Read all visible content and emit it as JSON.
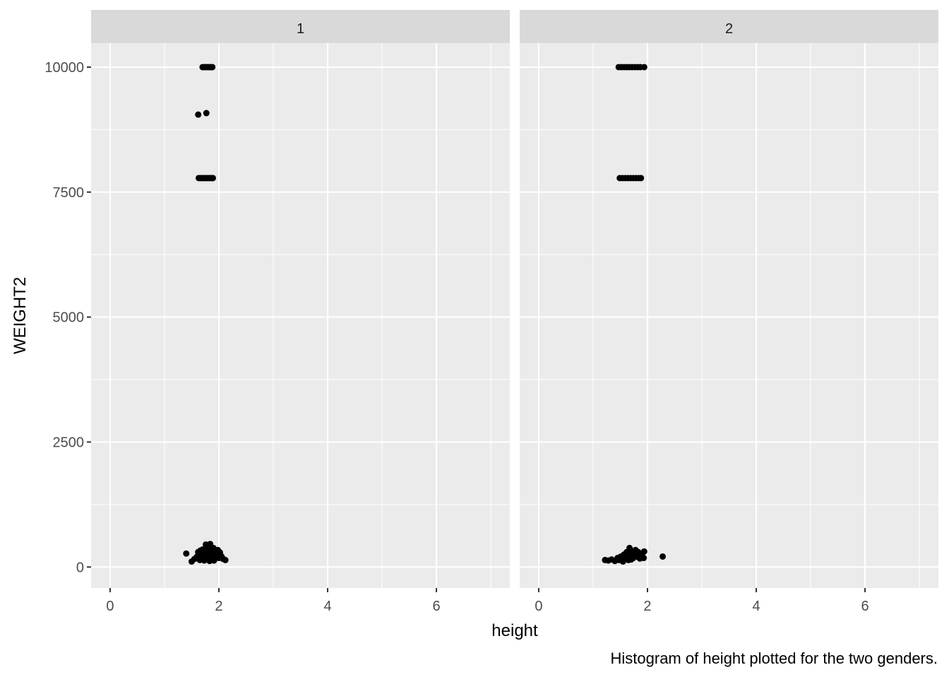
{
  "chart_data": {
    "type": "scatter",
    "xlabel": "height",
    "ylabel": "WEIGHT2",
    "caption": "Histogram of height plotted for the two genders.",
    "xlim": [
      -0.35,
      7.35
    ],
    "ylim": [
      -420,
      10480
    ],
    "x_ticks": [
      0,
      2,
      4,
      6
    ],
    "x_tick_labels": [
      "0",
      "2",
      "4",
      "6"
    ],
    "y_ticks": [
      0,
      2500,
      5000,
      7500,
      10000
    ],
    "y_tick_labels": [
      "0",
      "2500",
      "5000",
      "7500",
      "10000"
    ],
    "grid": true,
    "colors": {
      "panel_bg": "#EBEBEB",
      "strip_bg": "#D9D9D9",
      "grid": "#FFFFFF",
      "point": "#000000",
      "text": "#4D4D4D"
    },
    "facets": [
      {
        "label": "1",
        "points": [
          [
            1.7,
            10000
          ],
          [
            1.73,
            10000
          ],
          [
            1.76,
            10000
          ],
          [
            1.79,
            10000
          ],
          [
            1.82,
            10000
          ],
          [
            1.85,
            10000
          ],
          [
            1.88,
            10000
          ],
          [
            1.62,
            9050
          ],
          [
            1.77,
            9080
          ],
          [
            1.63,
            7780
          ],
          [
            1.66,
            7780
          ],
          [
            1.69,
            7780
          ],
          [
            1.72,
            7780
          ],
          [
            1.75,
            7780
          ],
          [
            1.78,
            7780
          ],
          [
            1.81,
            7780
          ],
          [
            1.84,
            7780
          ],
          [
            1.87,
            7780
          ],
          [
            1.89,
            7780
          ],
          [
            1.4,
            270
          ],
          [
            1.5,
            110
          ],
          [
            1.55,
            160
          ],
          [
            1.6,
            210
          ],
          [
            1.62,
            300
          ],
          [
            1.65,
            140
          ],
          [
            1.68,
            250
          ],
          [
            1.7,
            350
          ],
          [
            1.72,
            190
          ],
          [
            1.75,
            280
          ],
          [
            1.78,
            400
          ],
          [
            1.8,
            230
          ],
          [
            1.82,
            320
          ],
          [
            1.84,
            460
          ],
          [
            1.86,
            170
          ],
          [
            1.88,
            270
          ],
          [
            1.9,
            380
          ],
          [
            1.92,
            220
          ],
          [
            1.94,
            310
          ],
          [
            1.96,
            250
          ],
          [
            1.98,
            340
          ],
          [
            2.0,
            180
          ],
          [
            2.02,
            290
          ],
          [
            2.05,
            210
          ],
          [
            2.08,
            160
          ],
          [
            2.12,
            140
          ],
          [
            1.58,
            180
          ],
          [
            1.66,
            330
          ],
          [
            1.73,
            130
          ],
          [
            1.79,
            180
          ],
          [
            1.85,
            350
          ],
          [
            1.91,
            130
          ],
          [
            1.97,
            200
          ],
          [
            1.76,
            450
          ],
          [
            1.83,
            120
          ]
        ]
      },
      {
        "label": "2",
        "points": [
          [
            1.47,
            10000
          ],
          [
            1.52,
            10000
          ],
          [
            1.57,
            10000
          ],
          [
            1.62,
            10000
          ],
          [
            1.67,
            10000
          ],
          [
            1.72,
            10000
          ],
          [
            1.77,
            10000
          ],
          [
            1.82,
            10000
          ],
          [
            1.87,
            10000
          ],
          [
            1.94,
            10000
          ],
          [
            1.49,
            7780
          ],
          [
            1.54,
            7780
          ],
          [
            1.59,
            7780
          ],
          [
            1.64,
            7780
          ],
          [
            1.69,
            7780
          ],
          [
            1.74,
            7780
          ],
          [
            1.79,
            7780
          ],
          [
            1.84,
            7780
          ],
          [
            1.88,
            7780
          ],
          [
            1.22,
            140
          ],
          [
            1.28,
            130
          ],
          [
            1.34,
            150
          ],
          [
            1.4,
            120
          ],
          [
            1.45,
            180
          ],
          [
            1.48,
            140
          ],
          [
            1.51,
            210
          ],
          [
            1.54,
            160
          ],
          [
            1.57,
            250
          ],
          [
            1.6,
            190
          ],
          [
            1.62,
            300
          ],
          [
            1.65,
            140
          ],
          [
            1.67,
            380
          ],
          [
            1.69,
            220
          ],
          [
            1.72,
            310
          ],
          [
            1.74,
            180
          ],
          [
            1.77,
            260
          ],
          [
            1.8,
            210
          ],
          [
            1.83,
            300
          ],
          [
            1.86,
            170
          ],
          [
            1.9,
            240
          ],
          [
            1.94,
            310
          ],
          [
            1.55,
            110
          ],
          [
            1.63,
            230
          ],
          [
            1.7,
            150
          ],
          [
            1.78,
            340
          ],
          [
            1.85,
            230
          ],
          [
            1.93,
            180
          ],
          [
            2.28,
            210
          ]
        ]
      }
    ]
  }
}
